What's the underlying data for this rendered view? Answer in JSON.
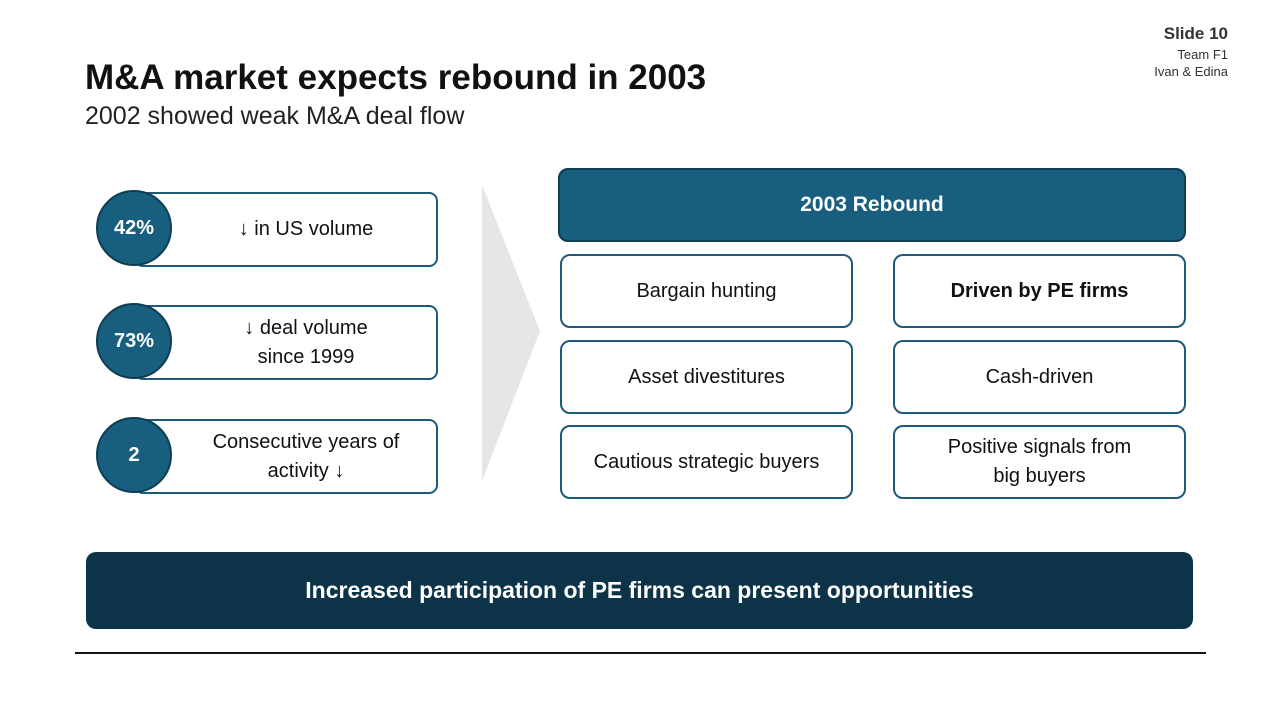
{
  "header": {
    "slide": "Slide 10",
    "team": "Team F1",
    "authors": "Ivan & Edina",
    "title": "M&A market expects rebound in 2003",
    "subtitle": "2002 showed weak M&A deal flow"
  },
  "stats": [
    {
      "value": "42%",
      "lines": [
        "↓ in US volume"
      ]
    },
    {
      "value": "73%",
      "lines": [
        "↓ deal volume",
        "since 1999"
      ]
    },
    {
      "value": "2",
      "lines": [
        "Consecutive years of",
        "activity ↓"
      ]
    }
  ],
  "panel": {
    "title": "2003 Rebound",
    "items": [
      [
        [
          "Bargain hunting"
        ],
        [
          "Driven by PE firms"
        ]
      ],
      [
        [
          "Asset divestitures"
        ],
        [
          "Cash-driven"
        ]
      ],
      [
        [
          "Cautious strategic buyers"
        ],
        [
          "Positive signals from",
          "big buyers"
        ]
      ]
    ]
  },
  "banner": "Increased participation of PE firms can present opportunities"
}
